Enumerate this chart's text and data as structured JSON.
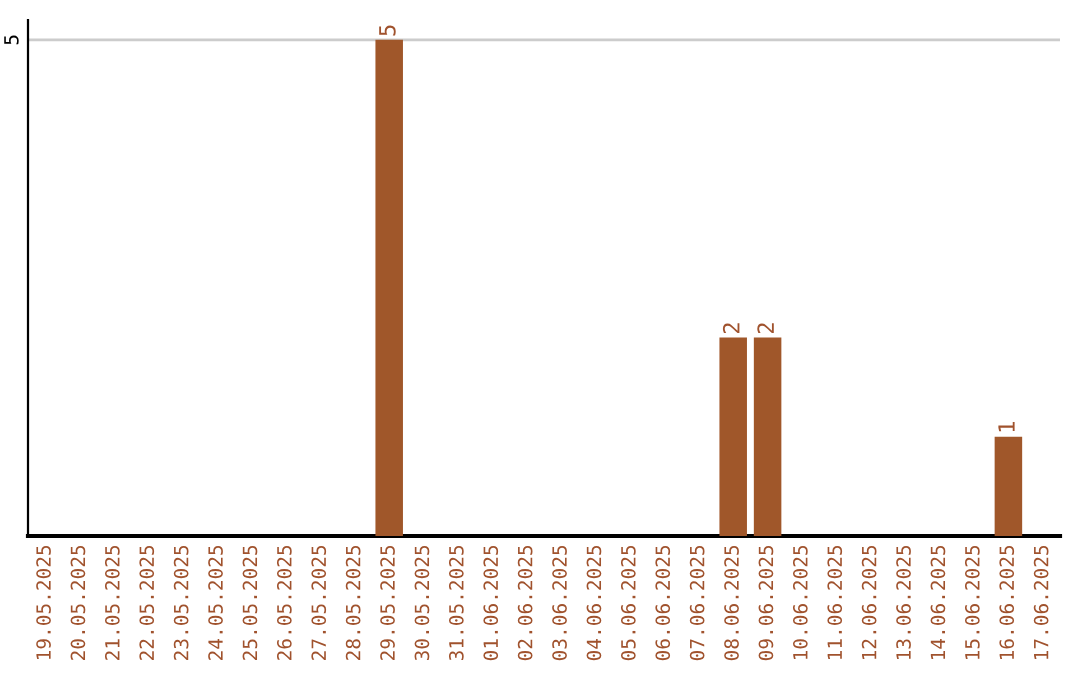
{
  "chart_data": {
    "type": "bar",
    "categories": [
      "19.05.2025",
      "20.05.2025",
      "21.05.2025",
      "22.05.2025",
      "23.05.2025",
      "24.05.2025",
      "25.05.2025",
      "26.05.2025",
      "27.05.2025",
      "28.05.2025",
      "29.05.2025",
      "30.05.2025",
      "31.05.2025",
      "01.06.2025",
      "02.06.2025",
      "03.06.2025",
      "04.06.2025",
      "05.06.2025",
      "06.06.2025",
      "07.06.2025",
      "08.06.2025",
      "09.06.2025",
      "10.06.2025",
      "11.06.2025",
      "12.06.2025",
      "13.06.2025",
      "14.06.2025",
      "15.06.2025",
      "16.06.2025",
      "17.06.2025"
    ],
    "values": [
      0,
      0,
      0,
      0,
      0,
      0,
      0,
      0,
      0,
      0,
      5,
      0,
      0,
      0,
      0,
      0,
      0,
      0,
      0,
      0,
      2,
      2,
      0,
      0,
      0,
      0,
      0,
      0,
      1,
      0
    ],
    "value_labels": [
      null,
      null,
      null,
      null,
      null,
      null,
      null,
      null,
      null,
      null,
      "5",
      null,
      null,
      null,
      null,
      null,
      null,
      null,
      null,
      null,
      "2",
      "2",
      null,
      null,
      null,
      null,
      null,
      null,
      "1",
      null
    ],
    "color": "#a0572a",
    "ylim": [
      0,
      5.2
    ],
    "yticks": [
      5
    ],
    "grid": "y",
    "legend": false
  }
}
